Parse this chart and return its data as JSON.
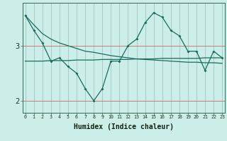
{
  "xlabel": "Humidex (Indice chaleur)",
  "background_color": "#cceee8",
  "line_color": "#1a6b5e",
  "x_values": [
    0,
    1,
    2,
    3,
    4,
    5,
    6,
    7,
    8,
    9,
    10,
    11,
    12,
    13,
    14,
    15,
    16,
    17,
    18,
    19,
    20,
    21,
    22,
    23
  ],
  "y1_values": [
    3.55,
    3.28,
    3.05,
    2.72,
    2.78,
    2.62,
    2.5,
    2.22,
    2.0,
    2.22,
    2.72,
    2.72,
    3.0,
    3.12,
    3.42,
    3.6,
    3.52,
    3.28,
    3.18,
    2.9,
    2.9,
    2.55,
    2.9,
    2.78
  ],
  "y2_upper": [
    3.55,
    3.38,
    3.22,
    3.12,
    3.05,
    3.0,
    2.95,
    2.9,
    2.88,
    2.85,
    2.82,
    2.8,
    2.78,
    2.76,
    2.75,
    2.74,
    2.73,
    2.72,
    2.71,
    2.7,
    2.7,
    2.69,
    2.69,
    2.68
  ],
  "y2_lower": [
    2.72,
    2.72,
    2.72,
    2.73,
    2.73,
    2.73,
    2.74,
    2.74,
    2.74,
    2.75,
    2.75,
    2.75,
    2.75,
    2.76,
    2.76,
    2.76,
    2.77,
    2.77,
    2.77,
    2.77,
    2.77,
    2.78,
    2.78,
    2.78
  ],
  "ylim": [
    1.78,
    3.78
  ],
  "yticks": [
    2,
    3
  ],
  "xlim": [
    -0.3,
    23.3
  ],
  "grid_color_h": "#cc6666",
  "grid_color_v": "#99bbbb"
}
